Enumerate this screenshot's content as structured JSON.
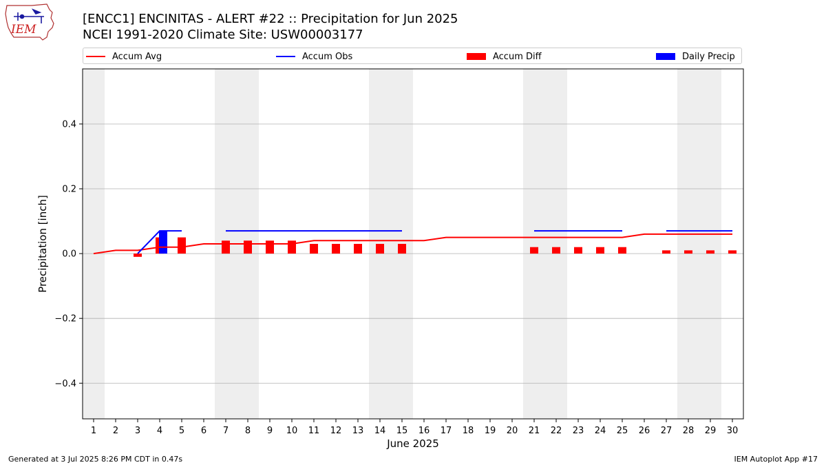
{
  "header": {
    "title_line1": "[ENCC1] ENCINITAS - ALERT #22 :: Precipitation for Jun 2025",
    "title_line2": "NCEI 1991-2020 Climate Site: USW00003177",
    "logo_text": "IEM"
  },
  "legend": {
    "items": [
      {
        "label": "Accum Avg",
        "kind": "line",
        "color": "#ff0000"
      },
      {
        "label": "Accum Obs",
        "kind": "line",
        "color": "#0000ff"
      },
      {
        "label": "Accum Diff",
        "kind": "patch",
        "color": "#ff0000"
      },
      {
        "label": "Daily Precip",
        "kind": "patch",
        "color": "#0000ff"
      }
    ]
  },
  "footer": {
    "left": "Generated at 3 Jul 2025 8:26 PM CDT in 0.47s",
    "right": "IEM Autoplot App #17"
  },
  "chart_data": {
    "type": "bar",
    "xlabel": "June 2025",
    "ylabel": "Precipitation [inch]",
    "xlim": [
      0.5,
      30.5
    ],
    "ylim": [
      -0.51,
      0.57
    ],
    "yticks": [
      -0.4,
      -0.2,
      0.0,
      0.2,
      0.4
    ],
    "ytick_labels": [
      "−0.4",
      "−0.2",
      "0.0",
      "0.2",
      "0.4"
    ],
    "x": [
      1,
      2,
      3,
      4,
      5,
      6,
      7,
      8,
      9,
      10,
      11,
      12,
      13,
      14,
      15,
      16,
      17,
      18,
      19,
      20,
      21,
      22,
      23,
      24,
      25,
      26,
      27,
      28,
      29,
      30
    ],
    "grid": "y",
    "weekend_shading": [
      [
        0.5,
        1.5
      ],
      [
        6.5,
        8.5
      ],
      [
        13.5,
        15.5
      ],
      [
        20.5,
        22.5
      ],
      [
        27.5,
        29.5
      ]
    ],
    "series": [
      {
        "name": "Accum Avg",
        "kind": "line",
        "color": "#ff0000",
        "values": [
          0.0,
          0.01,
          0.01,
          0.02,
          0.02,
          0.03,
          0.03,
          0.03,
          0.03,
          0.03,
          0.04,
          0.04,
          0.04,
          0.04,
          0.04,
          0.04,
          0.05,
          0.05,
          0.05,
          0.05,
          0.05,
          0.05,
          0.05,
          0.05,
          0.05,
          0.06,
          0.06,
          0.06,
          0.06,
          0.06
        ]
      },
      {
        "name": "Accum Obs",
        "kind": "line",
        "color": "#0000ff",
        "values": [
          null,
          null,
          0.0,
          0.07,
          0.07,
          null,
          0.07,
          0.07,
          0.07,
          0.07,
          0.07,
          0.07,
          0.07,
          0.07,
          0.07,
          null,
          null,
          null,
          null,
          null,
          0.07,
          0.07,
          0.07,
          0.07,
          0.07,
          null,
          0.07,
          0.07,
          0.07,
          0.07
        ]
      },
      {
        "name": "Accum Diff",
        "kind": "bar",
        "color": "#ff0000",
        "values": [
          null,
          null,
          -0.01,
          0.05,
          0.05,
          null,
          0.04,
          0.04,
          0.04,
          0.04,
          0.03,
          0.03,
          0.03,
          0.03,
          0.03,
          null,
          null,
          null,
          null,
          null,
          0.02,
          0.02,
          0.02,
          0.02,
          0.02,
          null,
          0.01,
          0.01,
          0.01,
          0.01
        ]
      },
      {
        "name": "Daily Precip",
        "kind": "bar",
        "color": "#0000ff",
        "values": [
          null,
          null,
          0.0,
          0.07,
          0.0,
          null,
          0.0,
          0.0,
          0.0,
          0.0,
          0.0,
          0.0,
          0.0,
          0.0,
          0.0,
          null,
          null,
          null,
          null,
          null,
          0.0,
          0.0,
          0.0,
          0.0,
          0.0,
          null,
          0.0,
          0.0,
          0.0,
          0.0
        ]
      }
    ]
  }
}
